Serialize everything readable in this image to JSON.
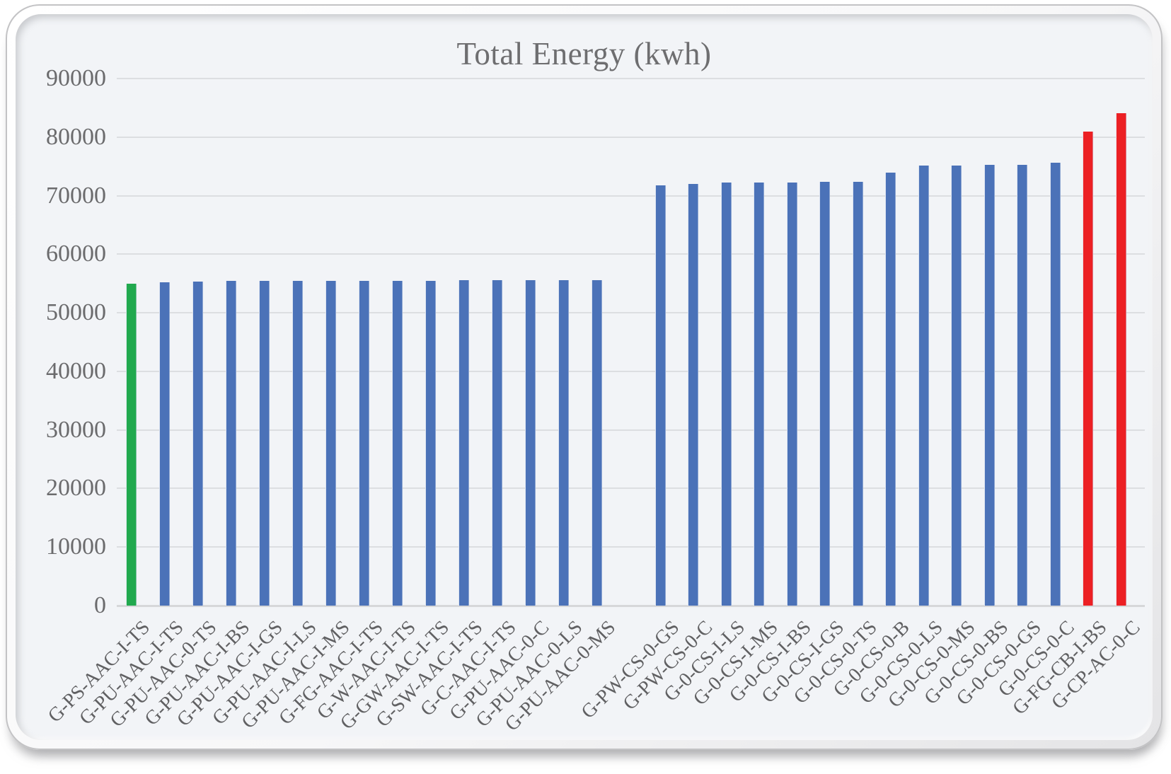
{
  "chart_data": {
    "type": "bar",
    "title": "Total Energy (kwh)",
    "xlabel": "",
    "ylabel": "",
    "ylim": [
      0,
      90000
    ],
    "ytick_step": 10000,
    "ytick_labels": [
      "0",
      "10000",
      "20000",
      "30000",
      "40000",
      "50000",
      "60000",
      "70000",
      "80000",
      "90000"
    ],
    "grid": "horizontal",
    "legend": "none",
    "group_break_after_index": 14,
    "categories": [
      "G-PS-AAC-I-TS",
      "G-PU-AAC-I-TS",
      "G-PU-AAC-0-TS",
      "G-PU-AAC-I-BS",
      "G-PU-AAC-I-GS",
      "G-PU-AAC-I-LS",
      "G-PU-AAC-I-MS",
      "G-FG-AAC-I-TS",
      "G-W-AAC-I-TS",
      "G-GW-AAC-I-TS",
      "G-SW-AAC-I-TS",
      "G-C-AAC-I-TS",
      "G-PU-AAC-0-C",
      "G-PU-AAC-0-LS",
      "G-PU-AAC-0-MS",
      "G-PW-CS-0-GS",
      "G-PW-CS-0-C",
      "G-0-CS-I-LS",
      "G-0-CS-I-MS",
      "G-0-CS-I-BS",
      "G-0-CS-I-GS",
      "G-0-CS-0-TS",
      "G-0-CS-0-B",
      "G-0-CS-0-LS",
      "G-0-CS-0-MS",
      "G-0-CS-0-BS",
      "G-0-CS-0-GS",
      "G-0-CS-0-C",
      "G-FG-CB-I-BS",
      "G-CP-AC-0-C"
    ],
    "values": [
      55000,
      55250,
      55350,
      55400,
      55400,
      55450,
      55450,
      55500,
      55500,
      55500,
      55550,
      55550,
      55550,
      55600,
      55600,
      71800,
      72000,
      72250,
      72250,
      72300,
      72350,
      72400,
      73900,
      75200,
      75200,
      75250,
      75250,
      75600,
      81000,
      84100
    ],
    "bar_color_keys": [
      "green",
      "blue",
      "blue",
      "blue",
      "blue",
      "blue",
      "blue",
      "blue",
      "blue",
      "blue",
      "blue",
      "blue",
      "blue",
      "blue",
      "blue",
      "blue",
      "blue",
      "blue",
      "blue",
      "blue",
      "blue",
      "blue",
      "blue",
      "blue",
      "blue",
      "blue",
      "blue",
      "blue",
      "red",
      "red"
    ],
    "palette": {
      "green": "#21A94E",
      "blue": "#4B72B8",
      "red": "#EC2024"
    },
    "text_color": "#606062",
    "gridline_color": "#dcdee1"
  }
}
